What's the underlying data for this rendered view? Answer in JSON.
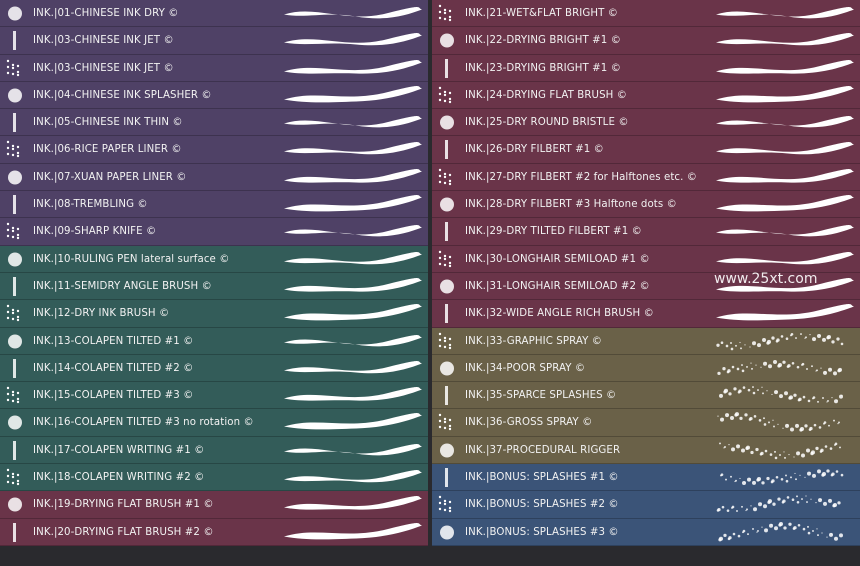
{
  "brushes_left": [
    {
      "label": "INK.|01-CHINESE INK DRY ©",
      "color": "purple"
    },
    {
      "label": "INK.|03-CHINESE INK JET ©",
      "color": "purple"
    },
    {
      "label": "INK.|03-CHINESE INK JET ©",
      "color": "purple"
    },
    {
      "label": "INK.|04-CHINESE INK SPLASHER ©",
      "color": "purple"
    },
    {
      "label": "INK.|05-CHINESE INK THIN ©",
      "color": "purple"
    },
    {
      "label": "INK.|06-RICE PAPER LINER ©",
      "color": "purple"
    },
    {
      "label": "INK.|07-XUAN PAPER LINER ©",
      "color": "purple"
    },
    {
      "label": "INK.|08-TREMBLING ©",
      "color": "purple"
    },
    {
      "label": "INK.|09-SHARP KNIFE ©",
      "color": "purple"
    },
    {
      "label": "INK.|10-RULING PEN lateral surface ©",
      "color": "teal"
    },
    {
      "label": "INK.|11-SEMIDRY ANGLE BRUSH ©",
      "color": "teal"
    },
    {
      "label": "INK.|12-DRY INK BRUSH ©",
      "color": "teal"
    },
    {
      "label": "INK.|13-COLAPEN TILTED #1 ©",
      "color": "teal"
    },
    {
      "label": "INK.|14-COLAPEN TILTED #2 ©",
      "color": "teal"
    },
    {
      "label": "INK.|15-COLAPEN TILTED #3 ©",
      "color": "teal"
    },
    {
      "label": "INK.|16-COLAPEN TILTED #3 no rotation ©",
      "color": "teal"
    },
    {
      "label": "INK.|17-COLAPEN WRITING #1 ©",
      "color": "teal"
    },
    {
      "label": "INK.|18-COLAPEN WRITING #2 ©",
      "color": "teal"
    },
    {
      "label": "INK.|19-DRYING FLAT BRUSH #1 ©",
      "color": "maroon"
    },
    {
      "label": "INK.|20-DRYING FLAT BRUSH #2 ©",
      "color": "maroon"
    }
  ],
  "brushes_right": [
    {
      "label": "INK.|21-WET&FLAT BRIGHT ©",
      "color": "maroon"
    },
    {
      "label": "INK.|22-DRYING BRIGHT #1 ©",
      "color": "maroon"
    },
    {
      "label": "INK.|23-DRYING BRIGHT #1 ©",
      "color": "maroon"
    },
    {
      "label": "INK.|24-DRYING FLAT BRUSH ©",
      "color": "maroon"
    },
    {
      "label": "INK.|25-DRY ROUND BRISTLE ©",
      "color": "maroon"
    },
    {
      "label": "INK.|26-DRY FILBERT #1 ©",
      "color": "maroon"
    },
    {
      "label": "INK.|27-DRY FILBERT #2 for Halftones etc. ©",
      "color": "maroon"
    },
    {
      "label": "INK.|28-DRY FILBERT #3 Halftone dots ©",
      "color": "maroon"
    },
    {
      "label": "INK.|29-DRY TILTED FILBERT #1 ©",
      "color": "maroon"
    },
    {
      "label": "INK.|30-LONGHAIR SEMILOAD #1 ©",
      "color": "maroon"
    },
    {
      "label": "INK.|31-LONGHAIR SEMILOAD #2 ©",
      "color": "maroon"
    },
    {
      "label": "INK.|32-WIDE ANGLE RICH BRUSH ©",
      "color": "maroon"
    },
    {
      "label": "INK.|33-GRAPHIC SPRAY ©",
      "color": "olive"
    },
    {
      "label": "INK.|34-POOR SPRAY ©",
      "color": "olive"
    },
    {
      "label": "INK.|35-SPARCE SPLASHES ©",
      "color": "olive"
    },
    {
      "label": "INK.|36-GROSS SPRAY ©",
      "color": "olive"
    },
    {
      "label": "INK.|37-PROCEDURAL RIGGER",
      "color": "olive"
    },
    {
      "label": "INK.|BONUS: SPLASHES #1 ©",
      "color": "blue"
    },
    {
      "label": "INK.|BONUS: SPLASHES #2 ©",
      "color": "blue"
    },
    {
      "label": "INK.|BONUS: SPLASHES #3 ©",
      "color": "blue"
    }
  ],
  "watermark": "www.25xt.com"
}
